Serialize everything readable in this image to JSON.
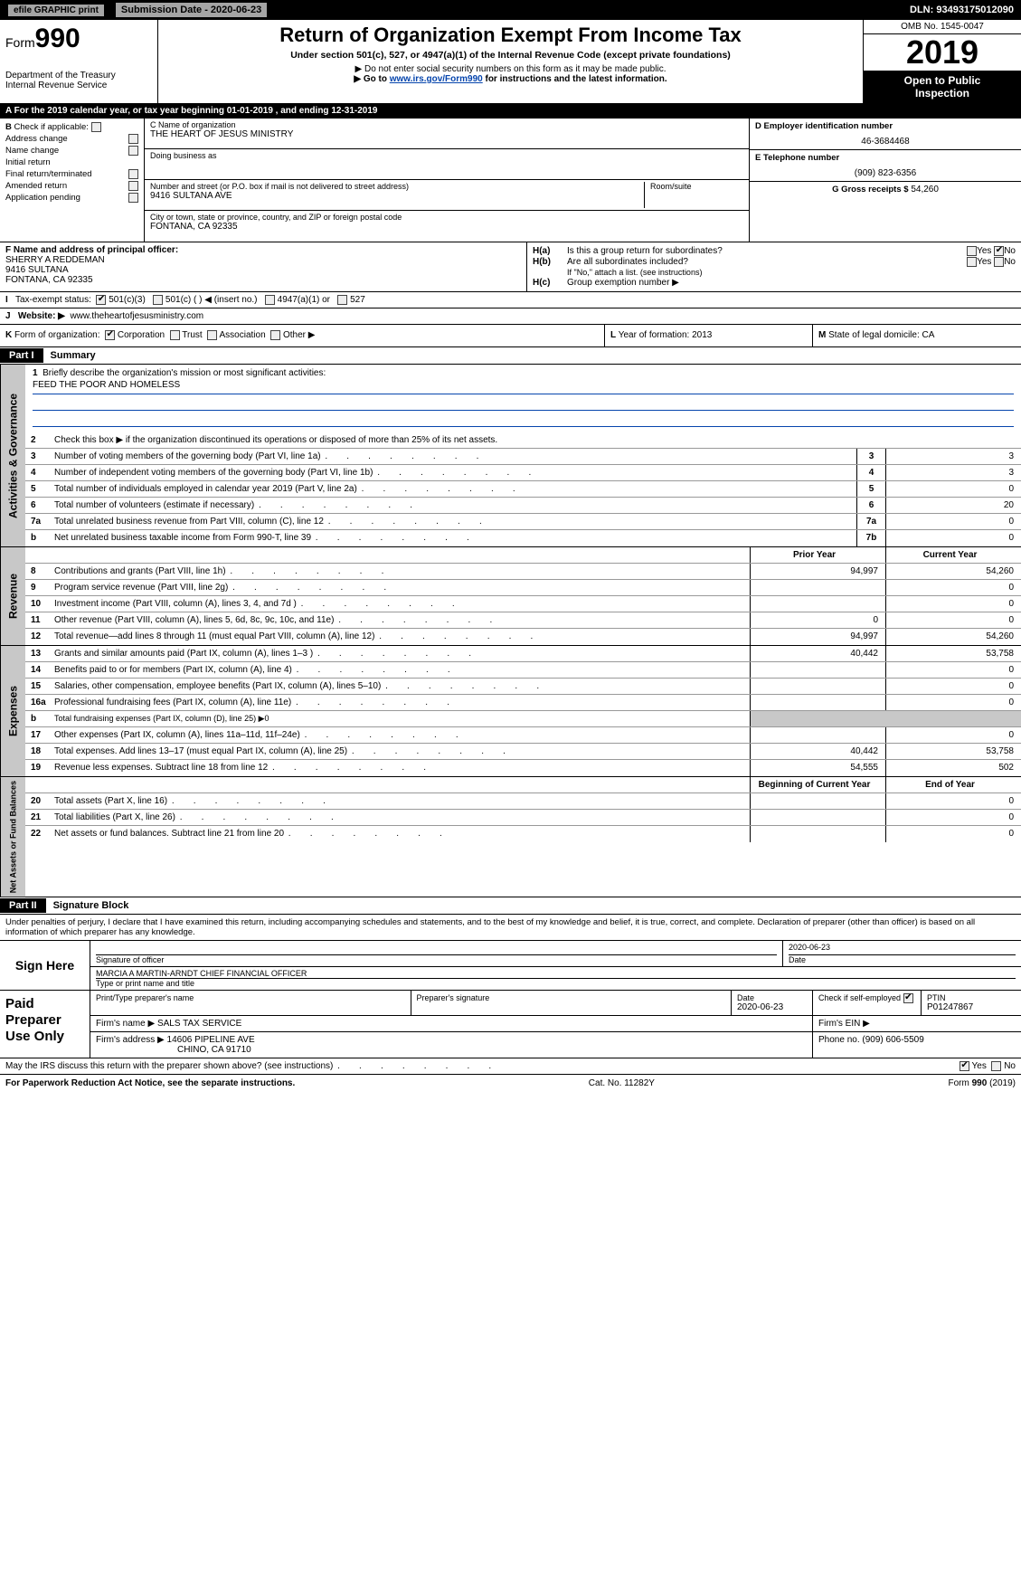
{
  "topbar": {
    "efile": "efile GRAPHIC print",
    "submission_label": "Submission Date - 2020-06-23",
    "dln": "DLN: 93493175012090"
  },
  "header": {
    "form_prefix": "Form",
    "form_number": "990",
    "dept": "Department of the Treasury",
    "irs": "Internal Revenue Service",
    "title": "Return of Organization Exempt From Income Tax",
    "subtitle": "Under section 501(c), 527, or 4947(a)(1) of the Internal Revenue Code (except private foundations)",
    "note1": "▶ Do not enter social security numbers on this form as it may be made public.",
    "note2_pre": "▶ Go to ",
    "note2_link": "www.irs.gov/Form990",
    "note2_post": " for instructions and the latest information.",
    "omb": "OMB No. 1545-0047",
    "year": "2019",
    "open1": "Open to Public",
    "open2": "Inspection"
  },
  "rowA": "A   For the 2019 calendar year, or tax year beginning 01-01-2019      , and ending 12-31-2019",
  "colB": {
    "label": "B",
    "check_if": "Check if applicable:",
    "items": [
      "Address change",
      "Name change",
      "Initial return",
      "Final return/terminated",
      "Amended return",
      "Application pending"
    ]
  },
  "colC": {
    "name_label": "C Name of organization",
    "name": "THE HEART OF JESUS MINISTRY",
    "dba_label": "Doing business as",
    "dba": "",
    "street_label": "Number and street (or P.O. box if mail is not delivered to street address)",
    "room_label": "Room/suite",
    "street": "9416 SULTANA AVE",
    "city_label": "City or town, state or province, country, and ZIP or foreign postal code",
    "city": "Fontana, CA  92335"
  },
  "colD": {
    "ein_label": "D Employer identification number",
    "ein": "46-3684468",
    "tel_label": "E Telephone number",
    "tel": "(909) 823-6356",
    "gross_label": "G Gross receipts $",
    "gross": "54,260"
  },
  "colF": {
    "label": "F  Name and address of principal officer:",
    "name": "SHERRY A REDDEMAN",
    "street": "9416 SULTANA",
    "city": "FONTANA, CA  92335"
  },
  "colH": {
    "ha": "H(a)",
    "ha_text": "Is this a group return for subordinates?",
    "hb": "H(b)",
    "hb_text": "Are all subordinates included?",
    "hb_note": "If \"No,\" attach a list. (see instructions)",
    "hc": "H(c)",
    "hc_text": "Group exemption number ▶",
    "yes": "Yes",
    "no": "No"
  },
  "rowI": {
    "label": "I",
    "text": "Tax-exempt status:",
    "opts": [
      "501(c)(3)",
      "501(c) (   ) ◀ (insert no.)",
      "4947(a)(1) or",
      "527"
    ]
  },
  "rowJ": {
    "label": "J",
    "text": "Website: ▶",
    "val": "www.theheartofjesusministry.com"
  },
  "rowK": {
    "label": "K",
    "text": "Form of organization:",
    "opts": [
      "Corporation",
      "Trust",
      "Association",
      "Other ▶"
    ]
  },
  "rowL": {
    "label": "L",
    "text": "Year of formation:",
    "val": "2013"
  },
  "rowM": {
    "label": "M",
    "text": "State of legal domicile:",
    "val": "CA"
  },
  "part1": {
    "header": "Part I",
    "title": "Summary"
  },
  "summary": {
    "governance_label": "Activities & Governance",
    "revenue_label": "Revenue",
    "expenses_label": "Expenses",
    "netassets_label": "Net Assets or Fund Balances",
    "line1_label": "Briefly describe the organization's mission or most significant activities:",
    "line1_val": "FEED THE POOR AND HOMELESS",
    "line2": "Check this box ▶      if the organization discontinued its operations or disposed of more than 25% of its net assets.",
    "prior_year": "Prior Year",
    "current_year": "Current Year",
    "begin_year": "Beginning of Current Year",
    "end_year": "End of Year",
    "rows_gov": [
      {
        "n": "3",
        "d": "Number of voting members of the governing body (Part VI, line 1a)",
        "box": "3",
        "cy": "3"
      },
      {
        "n": "4",
        "d": "Number of independent voting members of the governing body (Part VI, line 1b)",
        "box": "4",
        "cy": "3"
      },
      {
        "n": "5",
        "d": "Total number of individuals employed in calendar year 2019 (Part V, line 2a)",
        "box": "5",
        "cy": "0"
      },
      {
        "n": "6",
        "d": "Total number of volunteers (estimate if necessary)",
        "box": "6",
        "cy": "20"
      },
      {
        "n": "7a",
        "d": "Total unrelated business revenue from Part VIII, column (C), line 12",
        "box": "7a",
        "cy": "0"
      },
      {
        "n": "b",
        "d": "Net unrelated business taxable income from Form 990-T, line 39",
        "box": "7b",
        "cy": "0"
      }
    ],
    "rows_rev": [
      {
        "n": "8",
        "d": "Contributions and grants (Part VIII, line 1h)",
        "py": "94,997",
        "cy": "54,260"
      },
      {
        "n": "9",
        "d": "Program service revenue (Part VIII, line 2g)",
        "py": "",
        "cy": "0"
      },
      {
        "n": "10",
        "d": "Investment income (Part VIII, column (A), lines 3, 4, and 7d )",
        "py": "",
        "cy": "0"
      },
      {
        "n": "11",
        "d": "Other revenue (Part VIII, column (A), lines 5, 6d, 8c, 9c, 10c, and 11e)",
        "py": "0",
        "cy": "0"
      },
      {
        "n": "12",
        "d": "Total revenue—add lines 8 through 11 (must equal Part VIII, column (A), line 12)",
        "py": "94,997",
        "cy": "54,260"
      }
    ],
    "rows_exp": [
      {
        "n": "13",
        "d": "Grants and similar amounts paid (Part IX, column (A), lines 1–3 )",
        "py": "40,442",
        "cy": "53,758"
      },
      {
        "n": "14",
        "d": "Benefits paid to or for members (Part IX, column (A), line 4)",
        "py": "",
        "cy": "0"
      },
      {
        "n": "15",
        "d": "Salaries, other compensation, employee benefits (Part IX, column (A), lines 5–10)",
        "py": "",
        "cy": "0"
      },
      {
        "n": "16a",
        "d": "Professional fundraising fees (Part IX, column (A), line 11e)",
        "py": "",
        "cy": "0"
      },
      {
        "n": "b",
        "d": "Total fundraising expenses (Part IX, column (D), line 25) ▶0",
        "onecol": true
      },
      {
        "n": "17",
        "d": "Other expenses (Part IX, column (A), lines 11a–11d, 11f–24e)",
        "py": "",
        "cy": "0"
      },
      {
        "n": "18",
        "d": "Total expenses. Add lines 13–17 (must equal Part IX, column (A), line 25)",
        "py": "40,442",
        "cy": "53,758"
      },
      {
        "n": "19",
        "d": "Revenue less expenses. Subtract line 18 from line 12",
        "py": "54,555",
        "cy": "502"
      }
    ],
    "rows_net": [
      {
        "n": "20",
        "d": "Total assets (Part X, line 16)",
        "py": "",
        "cy": "0"
      },
      {
        "n": "21",
        "d": "Total liabilities (Part X, line 26)",
        "py": "",
        "cy": "0"
      },
      {
        "n": "22",
        "d": "Net assets or fund balances. Subtract line 21 from line 20",
        "py": "",
        "cy": "0"
      }
    ]
  },
  "part2": {
    "header": "Part II",
    "title": "Signature Block"
  },
  "perjury": "Under penalties of perjury, I declare that I have examined this return, including accompanying schedules and statements, and to the best of my knowledge and belief, it is true, correct, and complete. Declaration of preparer (other than officer) is based on all information of which preparer has any knowledge.",
  "sign": {
    "here": "Sign Here",
    "sig_officer": "Signature of officer",
    "date_lbl": "Date",
    "date": "2020-06-23",
    "name": "MARCIA A MARTIN-ARNDT  CHIEF FINANCIAL OFFICER",
    "name_lbl": "Type or print name and title"
  },
  "paid": {
    "label": "Paid Preparer Use Only",
    "pt_name_lbl": "Print/Type preparer's name",
    "pt_sig_lbl": "Preparer's signature",
    "date_lbl": "Date",
    "date": "2020-06-23",
    "check_lbl": "Check        if self-employed",
    "ptin_lbl": "PTIN",
    "ptin": "P01247867",
    "firm_name_lbl": "Firm's name    ▶",
    "firm_name": "SALS TAX SERVICE",
    "firm_ein_lbl": "Firm's EIN ▶",
    "firm_addr_lbl": "Firm's address ▶",
    "firm_addr1": "14606 PIPELINE AVE",
    "firm_addr2": "CHINO, CA  91710",
    "phone_lbl": "Phone no.",
    "phone": "(909) 606-5509"
  },
  "discuss": {
    "text": "May the IRS discuss this return with the preparer shown above? (see instructions)",
    "yes": "Yes",
    "no": "No"
  },
  "footer": {
    "left": "For Paperwork Reduction Act Notice, see the separate instructions.",
    "mid": "Cat. No. 11282Y",
    "right_pre": "Form ",
    "right_bold": "990",
    "right_post": " (2019)"
  },
  "colors": {
    "black": "#000000",
    "gray_btn": "#a5a5a5",
    "gray_shade": "#c8c8c8",
    "link": "#0645ad"
  }
}
